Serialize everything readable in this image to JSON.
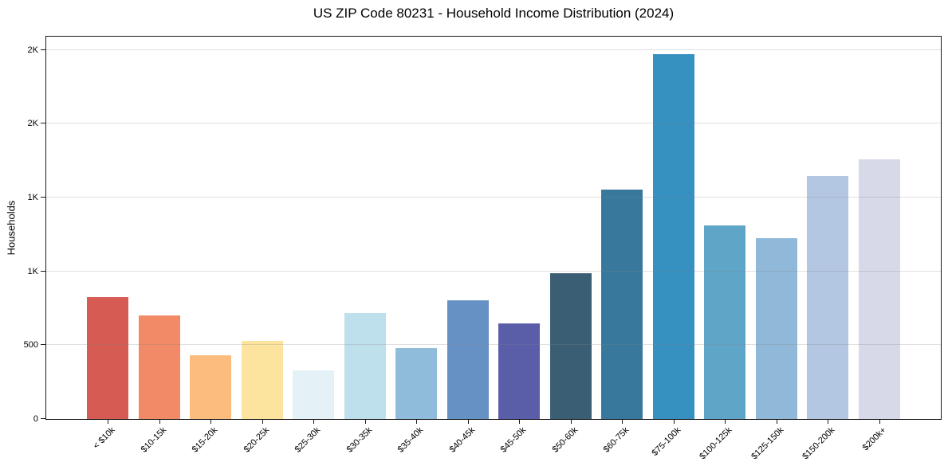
{
  "chart_data": {
    "type": "bar",
    "title": "US ZIP Code 80231 - Household Income Distribution (2024)",
    "xlabel": "",
    "ylabel": "Households",
    "ylim": [
      0,
      2590
    ],
    "grid": "horizontal-over-bars",
    "legend": "none",
    "background": "#ffffff",
    "categories": [
      "< $10k",
      "$10-15k",
      "$15-20k",
      "$20-25k",
      "$25-30k",
      "$30-35k",
      "$35-40k",
      "$40-45k",
      "$45-50k",
      "$50-60k",
      "$60-75k",
      "$75-100k",
      "$100-125k",
      "$125-150k",
      "$150-200k",
      "$200k+"
    ],
    "values": [
      825,
      700,
      430,
      530,
      330,
      720,
      480,
      805,
      645,
      990,
      1555,
      2470,
      1310,
      1225,
      1645,
      1760
    ],
    "bar_colors": [
      "#d65b52",
      "#f28a68",
      "#fcbc7d",
      "#fde49e",
      "#e4f1f6",
      "#bedfec",
      "#90bcdb",
      "#6591c4",
      "#5a5ea9",
      "#3a5f74",
      "#38789d",
      "#3690c0",
      "#5fa5c8",
      "#8fb8d9",
      "#b3c6e2",
      "#d7d9e8"
    ],
    "yticks": [
      {
        "value": 0,
        "label": "0"
      },
      {
        "value": 500,
        "label": "500"
      },
      {
        "value": 1000,
        "label": "1K"
      },
      {
        "value": 1500,
        "label": "1K"
      },
      {
        "value": 2000,
        "label": "2K"
      },
      {
        "value": 2500,
        "label": "2K"
      }
    ],
    "colors": {
      "axis": "#1a1a1a",
      "text": "#000000",
      "grid": "rgba(130,130,130,0.25)"
    }
  }
}
